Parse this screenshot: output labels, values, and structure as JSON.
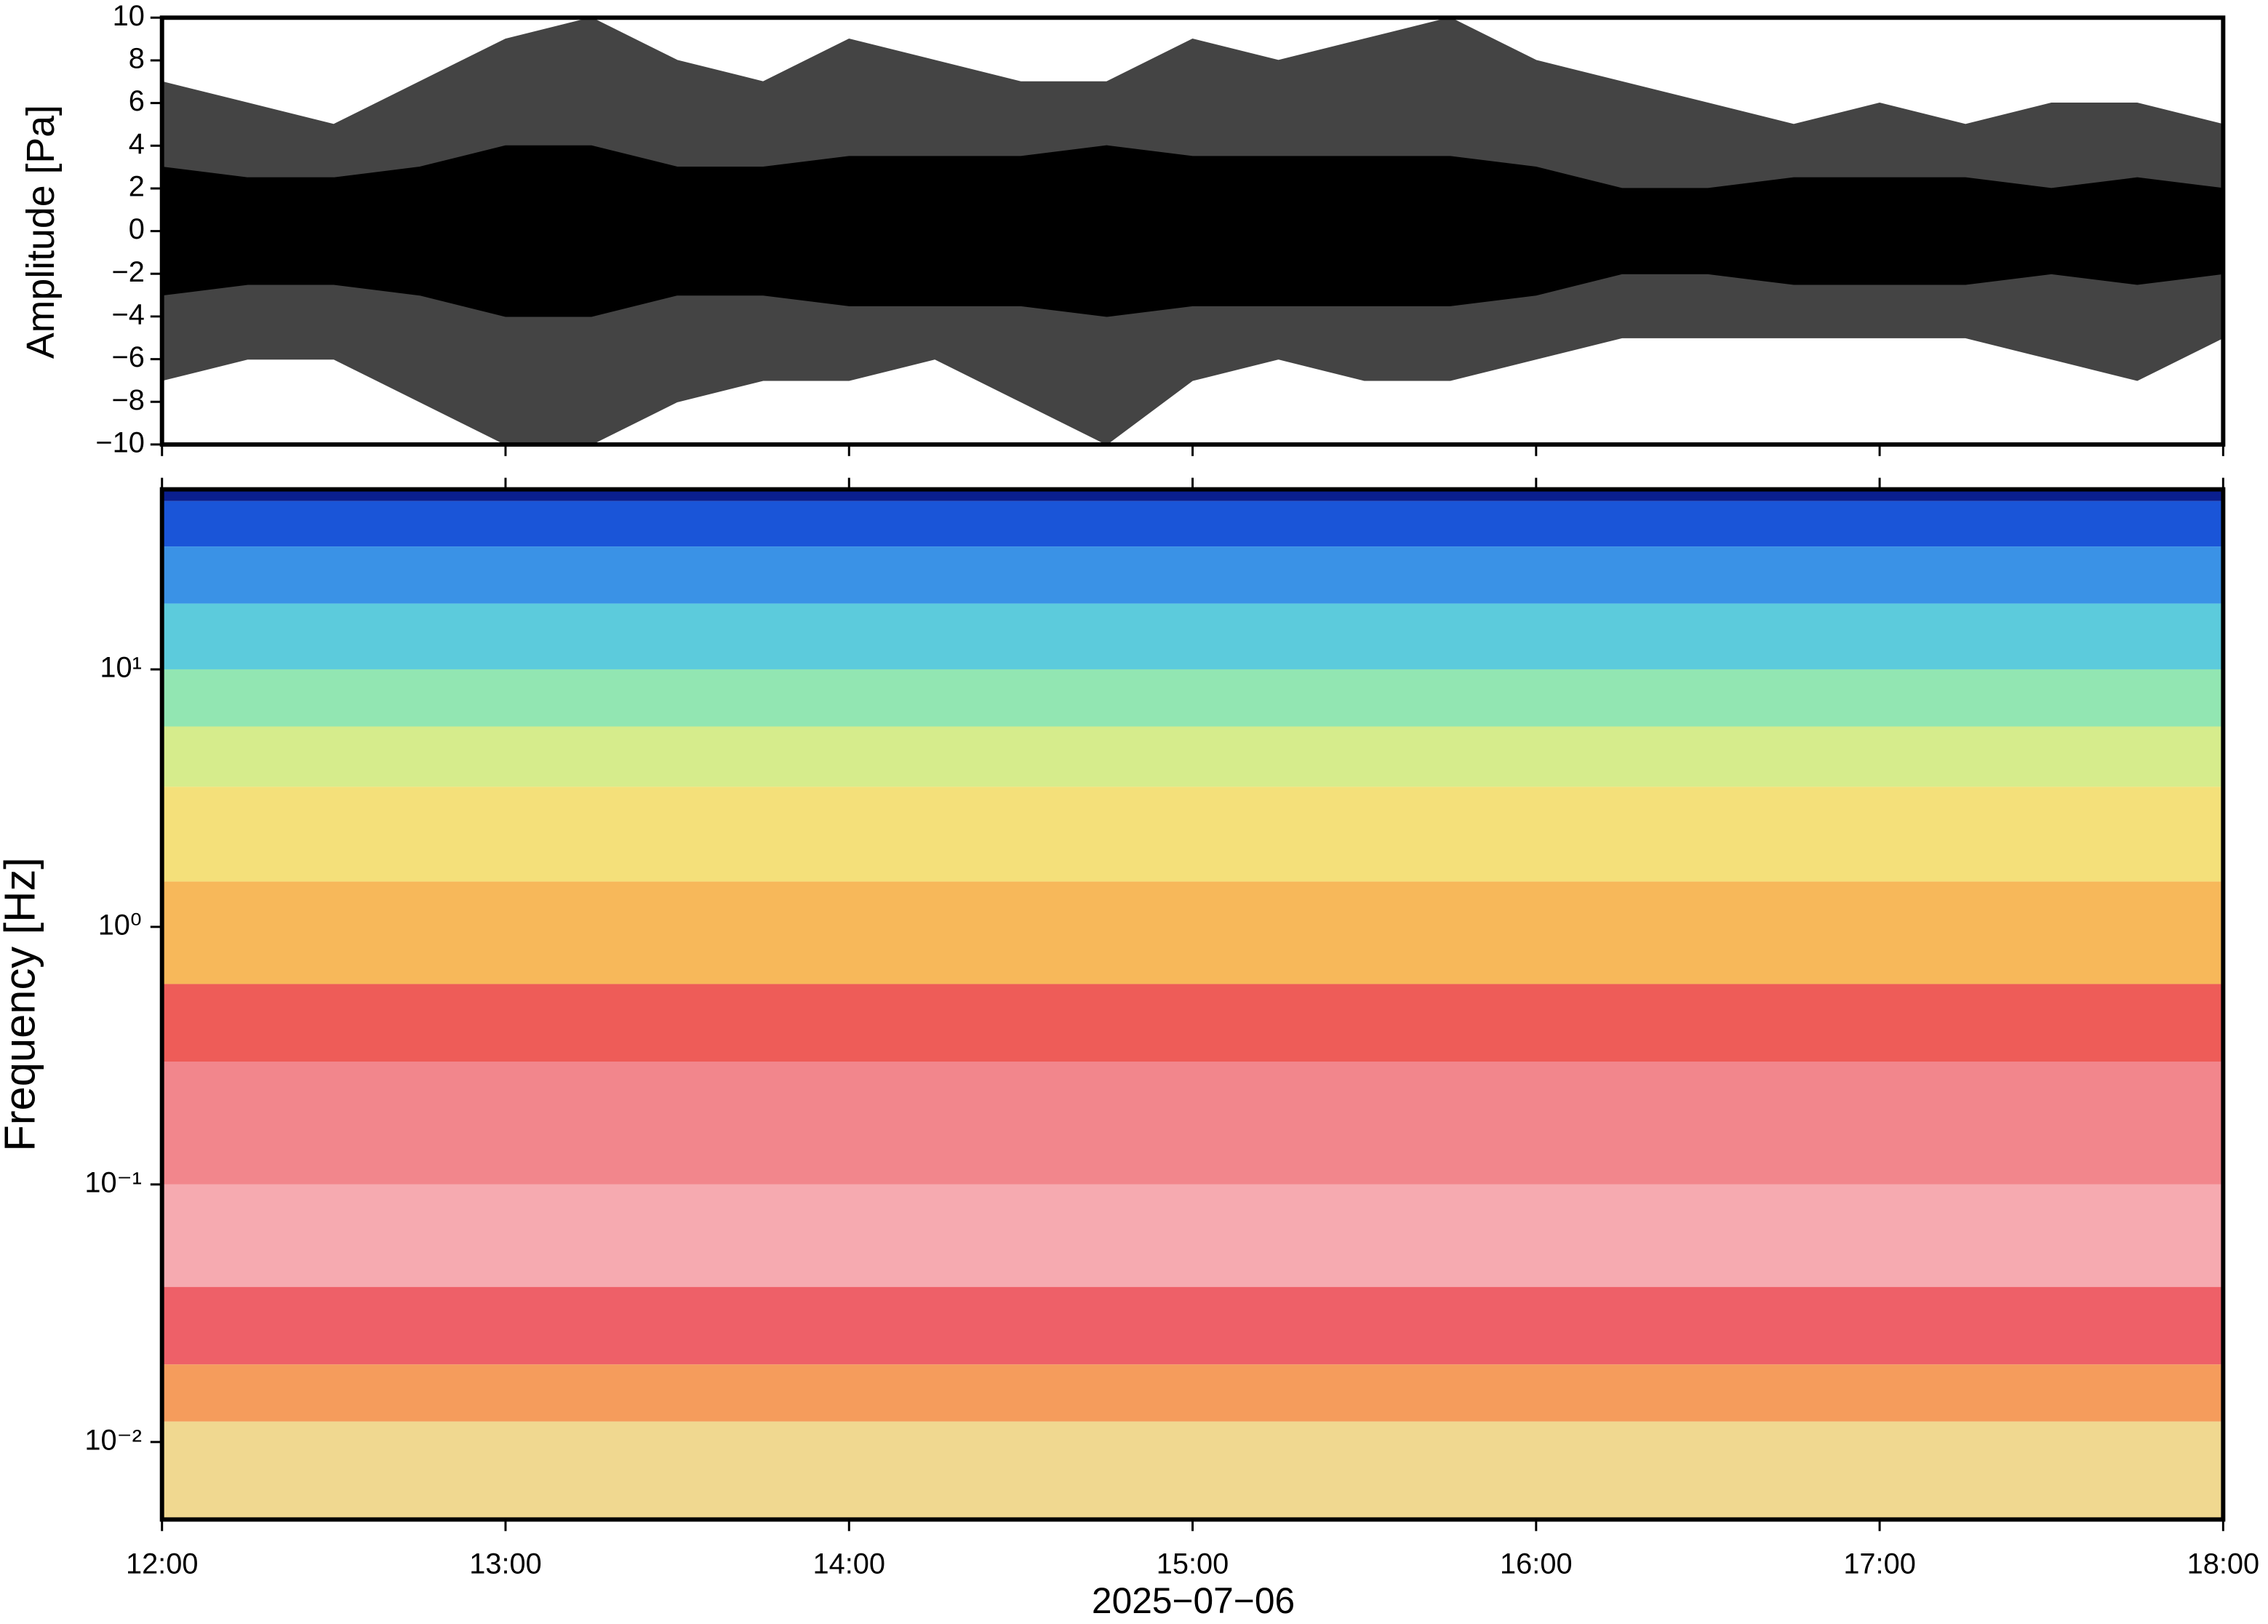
{
  "chart_data": [
    {
      "type": "area",
      "ylabel": "Amplitude [Pa]",
      "x": [
        12,
        12.25,
        12.5,
        12.75,
        13,
        13.25,
        13.5,
        13.75,
        14,
        14.25,
        14.5,
        14.75,
        15,
        15.25,
        15.5,
        15.75,
        16,
        16.25,
        16.5,
        16.75,
        17,
        17.25,
        17.5,
        17.75,
        18
      ],
      "series": [
        {
          "color": "#444444",
          "values": [
            7,
            6,
            5,
            7,
            9,
            10,
            8,
            7,
            9,
            8,
            7,
            7,
            9,
            8,
            9,
            10,
            8,
            7,
            6,
            5,
            6,
            5,
            6,
            6,
            5
          ]
        },
        {
          "color": "#444444",
          "values": [
            -7,
            -6,
            -6,
            -8,
            -10,
            -10,
            -8,
            -7,
            -7,
            -6,
            -8,
            -10,
            -7,
            -6,
            -7,
            -7,
            -6,
            -5,
            -5,
            -5,
            -5,
            -5,
            -6,
            -7,
            -5
          ]
        },
        {
          "color": "#000000",
          "values": [
            3,
            2.5,
            2.5,
            3,
            4,
            4,
            3,
            3,
            3.5,
            3.5,
            3.5,
            4,
            3.5,
            3.5,
            3.5,
            3.5,
            3,
            2,
            2,
            2.5,
            2.5,
            2.5,
            2,
            2.5,
            2
          ]
        },
        {
          "color": "#000000",
          "values": [
            -3,
            -2.5,
            -2.5,
            -3,
            -4,
            -4,
            -3,
            -3,
            -3.5,
            -3.5,
            -3.5,
            -4,
            -3.5,
            -3.5,
            -3.5,
            -3.5,
            -3,
            -2,
            -2,
            -2.5,
            -2.5,
            -2.5,
            -2,
            -2.5,
            -2
          ]
        }
      ],
      "xlim": [
        12,
        18
      ],
      "xticks": [
        12,
        13,
        14,
        15,
        16,
        17,
        18
      ],
      "ylim": [
        -10,
        10
      ],
      "yticks": [
        {
          "value": -10,
          "label": "−10"
        },
        {
          "value": -8,
          "label": "−8"
        },
        {
          "value": -6,
          "label": "−6"
        },
        {
          "value": -4,
          "label": "−4"
        },
        {
          "value": -2,
          "label": "−2"
        },
        0,
        2,
        4,
        6,
        8,
        10
      ]
    },
    {
      "type": "spectrogram",
      "ylabel": "Frequency [Hz]",
      "xlabel": "2025−07−06",
      "log_y": true,
      "bands": [
        {
          "fmin": 45,
          "fmax": 50,
          "color": "#0a1f8f"
        },
        {
          "fmin": 30,
          "fmax": 45,
          "color": "#1a55d8"
        },
        {
          "fmin": 18,
          "fmax": 30,
          "color": "#3a92e6"
        },
        {
          "fmin": 10,
          "fmax": 18,
          "color": "#5ccbdc"
        },
        {
          "fmin": 6,
          "fmax": 10,
          "color": "#92e6b2"
        },
        {
          "fmin": 3.5,
          "fmax": 6,
          "color": "#d6ec8c"
        },
        {
          "fmin": 1.5,
          "fmax": 3.5,
          "color": "#f4e07a"
        },
        {
          "fmin": 0.6,
          "fmax": 1.5,
          "color": "#f7b85a"
        },
        {
          "fmin": 0.3,
          "fmax": 0.6,
          "color": "#ee5c58"
        },
        {
          "fmin": 0.1,
          "fmax": 0.3,
          "color": "#f2868c"
        },
        {
          "fmin": 0.04,
          "fmax": 0.1,
          "color": "#f6aab0"
        },
        {
          "fmin": 0.02,
          "fmax": 0.04,
          "color": "#ee6068"
        },
        {
          "fmin": 0.012,
          "fmax": 0.02,
          "color": "#f59c5c"
        },
        {
          "fmin": 0.005,
          "fmax": 0.012,
          "color": "#f0d890"
        }
      ],
      "xlim": [
        12,
        18
      ],
      "xticks": [
        {
          "value": 12,
          "label": "12:00"
        },
        {
          "value": 13,
          "label": "13:00"
        },
        {
          "value": 14,
          "label": "14:00"
        },
        {
          "value": 15,
          "label": "15:00"
        },
        {
          "value": 16,
          "label": "16:00"
        },
        {
          "value": 17,
          "label": "17:00"
        },
        {
          "value": 18,
          "label": "18:00"
        }
      ],
      "ylim": [
        0.005,
        50
      ],
      "yticks": [
        {
          "value": 0.01,
          "label": "10⁻²"
        },
        {
          "value": 0.1,
          "label": "10⁻¹"
        },
        {
          "value": 1,
          "label": "10⁰"
        },
        {
          "value": 10,
          "label": "10¹"
        }
      ]
    }
  ]
}
